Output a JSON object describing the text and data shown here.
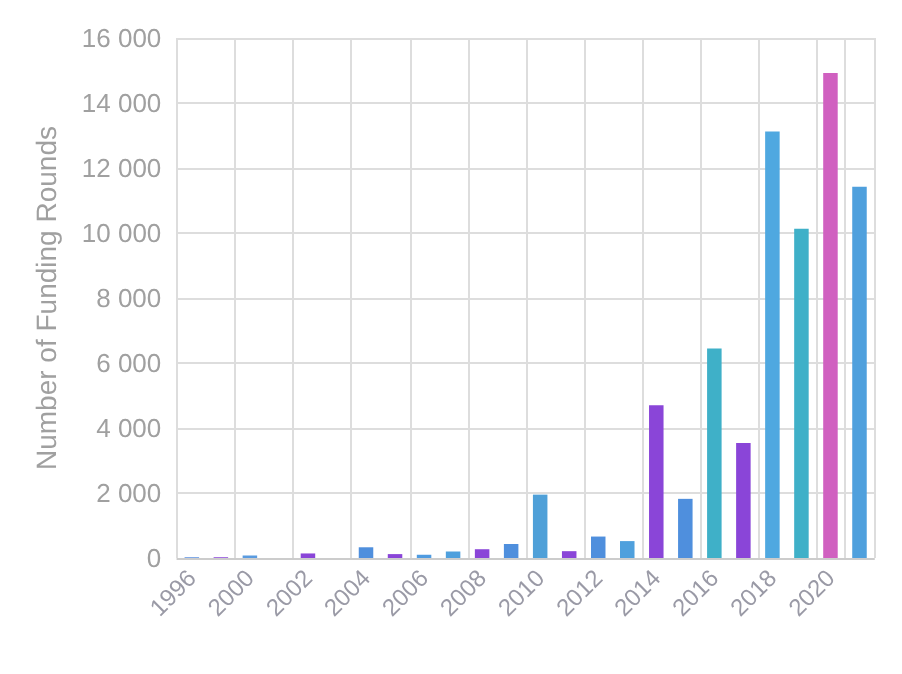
{
  "chart_data": {
    "type": "bar",
    "ylabel": "Number of Funding Rounds",
    "categories": [
      "1996",
      null,
      "2000",
      null,
      "2002",
      null,
      "2004",
      null,
      "2006",
      null,
      "2008",
      null,
      "2010",
      null,
      "2012",
      null,
      "2014",
      null,
      "2016",
      null,
      "2018",
      null,
      "2020",
      null
    ],
    "values": [
      20,
      20,
      80,
      null,
      140,
      null,
      330,
      120,
      100,
      200,
      270,
      430,
      1950,
      210,
      660,
      520,
      4700,
      1820,
      6450,
      3540,
      13120,
      10130,
      14920,
      11420
    ],
    "colors": [
      "#5a8fe0",
      "#8a45d8",
      "#5a9be0",
      "#6a8fe0",
      "#8a45d8",
      "#5a9be0",
      "#4f8fdd",
      "#8a45d8",
      "#4f9be0",
      "#4fa0dd",
      "#8a45d8",
      "#4f8fdd",
      "#4fa0d8",
      "#8a45d8",
      "#4f8fdd",
      "#4fa0dd",
      "#8a45d8",
      "#4f8fdd",
      "#3fb0c8",
      "#8a45d8",
      "#4fa8e0",
      "#3fb0c8",
      "#d060c0",
      "#4fa0dd"
    ],
    "ylim": [
      0,
      16000
    ],
    "yticks": [
      0,
      {
        "value": 2000,
        "label": "2 000"
      },
      {
        "value": 4000,
        "label": "4 000"
      },
      {
        "value": 6000,
        "label": "6 000"
      },
      {
        "value": 8000,
        "label": "8 000"
      },
      {
        "value": 10000,
        "label": "10 000"
      },
      {
        "value": 12000,
        "label": "12 000"
      },
      {
        "value": 14000,
        "label": "14 000"
      },
      {
        "value": 16000,
        "label": "16 000"
      }
    ],
    "grid": true
  }
}
